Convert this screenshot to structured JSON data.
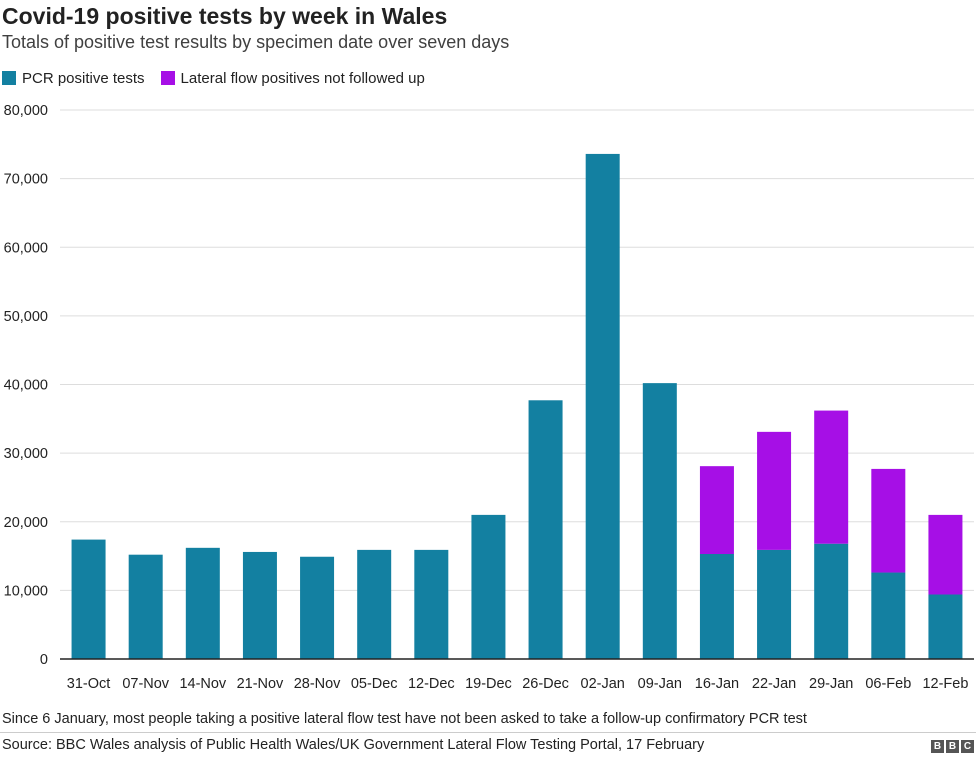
{
  "header": {
    "title": "Covid-19 positive tests by week in Wales",
    "subtitle": "Totals of positive test results by specimen date over seven days"
  },
  "colors": {
    "pcr": "#1380A1",
    "lft": "#A60FE6",
    "grid": "#dddddd",
    "axis": "#222222"
  },
  "chart_data": {
    "type": "bar",
    "stacked": true,
    "title": "Covid-19 positive tests by week in Wales",
    "subtitle": "Totals of positive test results by specimen date over seven days",
    "xlabel": "",
    "ylabel": "",
    "ylim": [
      0,
      80000
    ],
    "yticks": [
      0,
      10000,
      20000,
      30000,
      40000,
      50000,
      60000,
      70000,
      80000
    ],
    "ytick_labels": [
      "0",
      "10,000",
      "20,000",
      "30,000",
      "40,000",
      "50,000",
      "60,000",
      "70,000",
      "80,000"
    ],
    "grid": true,
    "legend_position": "top-left",
    "categories": [
      "31-Oct",
      "07-Nov",
      "14-Nov",
      "21-Nov",
      "28-Nov",
      "05-Dec",
      "12-Dec",
      "19-Dec",
      "26-Dec",
      "02-Jan",
      "09-Jan",
      "16-Jan",
      "22-Jan",
      "29-Jan",
      "06-Feb",
      "12-Feb"
    ],
    "series": [
      {
        "name": "PCR positive tests",
        "color_key": "pcr",
        "values": [
          17400,
          15200,
          16200,
          15600,
          14900,
          15900,
          15900,
          21000,
          37700,
          73600,
          40200,
          15300,
          15900,
          16800,
          12600,
          9400
        ]
      },
      {
        "name": "Lateral flow positives not followed up",
        "color_key": "lft",
        "values": [
          0,
          0,
          0,
          0,
          0,
          0,
          0,
          0,
          0,
          0,
          0,
          12800,
          17200,
          19400,
          15100,
          11600
        ]
      }
    ]
  },
  "legend": {
    "pcr": "PCR positive tests",
    "lft": "Lateral flow positives not followed up"
  },
  "footer": {
    "note": "Since 6 January, most people taking a positive lateral flow test have not been asked to take a follow-up confirmatory PCR test",
    "source": "Source: BBC Wales analysis of Public Health Wales/UK Government Lateral Flow Testing Portal, 17 February",
    "logo_letters": [
      "B",
      "B",
      "C"
    ]
  }
}
